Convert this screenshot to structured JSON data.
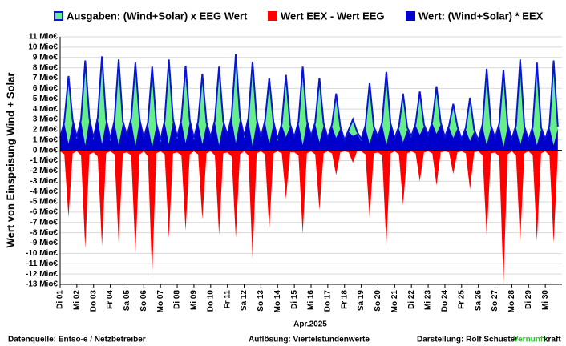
{
  "chart_data": {
    "type": "area",
    "y_axis_label": "Wert von Einspeisung Wind + Solar",
    "x_axis_label": "Apr.2025",
    "categories": [
      "Di 01",
      null,
      null,
      null,
      "Mi 02",
      null,
      null,
      null,
      "Do 03",
      null,
      null,
      null,
      "Fr 04",
      null,
      null,
      null,
      "Sa 05",
      null,
      null,
      null,
      "So 06",
      null,
      null,
      null,
      "Mo 07",
      null,
      null,
      null,
      "Di 08",
      null,
      null,
      null,
      "Mi 09",
      null,
      null,
      null,
      "Do 10",
      null,
      null,
      null,
      "Fr 11",
      null,
      null,
      null,
      "Sa 12",
      null,
      null,
      null,
      "So 13",
      null,
      null,
      null,
      "Mo 14",
      null,
      null,
      null,
      "Di 15",
      null,
      null,
      null,
      "Mi 16",
      null,
      null,
      null,
      "Do 17",
      null,
      null,
      null,
      "Fr 18",
      null,
      null,
      null,
      "Sa 19",
      null,
      null,
      null,
      "So 20",
      null,
      null,
      null,
      "Mo 21",
      null,
      null,
      null,
      "Di 22",
      null,
      null,
      null,
      "Mi 23",
      null,
      null,
      null,
      "Do 24",
      null,
      null,
      null,
      "Fr 25",
      null,
      null,
      null,
      "Sa 26",
      null,
      null,
      null,
      "So 27",
      null,
      null,
      null,
      "Mo 28",
      null,
      null,
      null,
      "Di 29",
      null,
      null,
      null,
      "Mi 30",
      null,
      null,
      null
    ],
    "series": [
      {
        "name": "Ausgaben: (Wind+Solar) x EEG Wert",
        "color": "#66ee88",
        "outline": "#0a14d8",
        "values": [
          1.2,
          2.8,
          7.2,
          2.9,
          1.3,
          3.0,
          8.7,
          3.1,
          1.2,
          3.2,
          9.1,
          3.0,
          1.1,
          2.9,
          8.8,
          2.8,
          1.4,
          3.1,
          8.5,
          3.0,
          1.2,
          2.7,
          8.1,
          2.6,
          1.0,
          2.9,
          8.8,
          3.0,
          1.3,
          3.0,
          8.2,
          2.9,
          1.2,
          2.8,
          7.4,
          2.7,
          1.3,
          2.9,
          8.1,
          2.8,
          1.5,
          3.3,
          9.3,
          3.2,
          1.4,
          3.1,
          8.6,
          3.0,
          1.2,
          2.9,
          7.0,
          2.8,
          1.1,
          2.6,
          7.3,
          2.5,
          1.3,
          2.8,
          8.1,
          2.9,
          1.4,
          2.7,
          7.0,
          2.6,
          1.2,
          2.5,
          5.5,
          2.3,
          1.0,
          2.0,
          3.0,
          1.8,
          1.1,
          2.4,
          6.5,
          2.3,
          1.3,
          2.7,
          7.6,
          2.6,
          1.2,
          2.3,
          5.5,
          2.2,
          1.4,
          2.6,
          5.7,
          2.5,
          1.5,
          2.8,
          6.2,
          2.7,
          1.3,
          2.4,
          4.5,
          2.3,
          1.1,
          2.2,
          5.1,
          2.0,
          1.0,
          2.5,
          7.9,
          2.4,
          1.2,
          2.6,
          7.8,
          2.5,
          1.1,
          2.4,
          8.8,
          2.3,
          1.0,
          2.3,
          8.5,
          2.2,
          1.1,
          2.4,
          8.7,
          2.3
        ]
      },
      {
        "name": "Wert EEX - Wert EEG",
        "color": "#ff0000",
        "values": [
          -0.1,
          -0.4,
          -6.5,
          -0.3,
          -0.1,
          -0.5,
          -9.5,
          -0.4,
          -0.2,
          -0.6,
          -9.3,
          -0.3,
          -0.1,
          -0.4,
          -9.0,
          -0.3,
          -0.2,
          -0.5,
          -10.0,
          -0.4,
          -0.1,
          -0.6,
          -12.3,
          -0.3,
          -0.1,
          -0.4,
          -8.5,
          -0.3,
          -0.2,
          -0.5,
          -7.8,
          -0.4,
          -0.1,
          -0.4,
          -6.7,
          -0.3,
          -0.1,
          -0.5,
          -8.2,
          -0.3,
          -0.2,
          -0.6,
          -8.5,
          -0.4,
          -0.1,
          -0.5,
          -10.5,
          -0.3,
          -0.1,
          -0.4,
          -7.8,
          -0.3,
          -0.1,
          -0.3,
          -4.7,
          -0.2,
          -0.2,
          -0.5,
          -8.1,
          -0.3,
          -0.1,
          -0.4,
          -5.8,
          -0.3,
          -0.1,
          -0.3,
          -2.4,
          -0.2,
          -0.1,
          -0.2,
          -1.2,
          -0.1,
          -0.1,
          -0.4,
          -6.6,
          -0.3,
          -0.2,
          -0.5,
          -9.2,
          -0.3,
          -0.1,
          -0.4,
          -5.3,
          -0.3,
          -0.1,
          -0.3,
          -3.0,
          -0.2,
          -0.1,
          -0.3,
          -3.4,
          -0.2,
          -0.1,
          -0.2,
          -2.3,
          -0.2,
          -0.1,
          -0.3,
          -3.8,
          -0.2,
          -0.1,
          -0.5,
          -8.4,
          -0.3,
          -0.2,
          -0.6,
          -13.0,
          -0.4,
          -0.1,
          -0.5,
          -8.9,
          -0.3,
          -0.1,
          -0.5,
          -8.8,
          -0.3,
          -0.1,
          -0.5,
          -9.0,
          -0.3
        ]
      },
      {
        "name": "Wert: (Wind+Solar) * EEX",
        "color": "#0000cc",
        "values": [
          1.0,
          2.6,
          0.6,
          2.7,
          1.1,
          2.8,
          0.5,
          2.9,
          1.0,
          3.0,
          0.6,
          2.8,
          0.9,
          2.7,
          0.5,
          2.6,
          1.2,
          2.9,
          0.4,
          2.8,
          1.0,
          2.5,
          0.3,
          2.4,
          0.8,
          2.7,
          0.6,
          2.8,
          1.1,
          2.8,
          0.7,
          2.7,
          1.0,
          2.6,
          0.6,
          2.5,
          1.1,
          2.7,
          0.5,
          2.6,
          1.3,
          3.1,
          0.7,
          3.0,
          1.2,
          2.9,
          0.4,
          2.8,
          1.0,
          2.7,
          0.6,
          2.6,
          0.9,
          2.4,
          1.3,
          2.3,
          1.1,
          2.6,
          0.5,
          2.7,
          1.2,
          2.5,
          0.8,
          2.4,
          1.0,
          2.3,
          1.2,
          2.1,
          0.8,
          1.8,
          1.4,
          1.6,
          0.9,
          2.2,
          0.6,
          2.1,
          1.1,
          2.5,
          0.5,
          2.4,
          1.0,
          2.1,
          0.8,
          2.0,
          1.2,
          2.4,
          1.5,
          2.3,
          1.3,
          2.6,
          1.6,
          2.5,
          1.1,
          2.2,
          1.2,
          2.1,
          0.9,
          2.0,
          0.9,
          1.8,
          0.8,
          2.3,
          0.5,
          2.2,
          1.0,
          2.4,
          0.3,
          2.3,
          0.9,
          2.2,
          0.5,
          2.1,
          0.8,
          2.1,
          0.5,
          2.0,
          0.9,
          2.2,
          0.5,
          2.1
        ]
      }
    ],
    "ylim": [
      -13,
      11
    ],
    "yticks": [
      {
        "value": 11,
        "label": "11 Mio€"
      },
      {
        "value": 10,
        "label": "10 Mio€"
      },
      {
        "value": 9,
        "label": "9 Mio€"
      },
      {
        "value": 8,
        "label": "8 Mio€"
      },
      {
        "value": 7,
        "label": "7 Mio€"
      },
      {
        "value": 6,
        "label": "6 Mio€"
      },
      {
        "value": 5,
        "label": "5 Mio€"
      },
      {
        "value": 4,
        "label": "4 Mio€"
      },
      {
        "value": 3,
        "label": "3 Mio€"
      },
      {
        "value": 2,
        "label": "2 Mio€"
      },
      {
        "value": 1,
        "label": "1 Mio€"
      },
      {
        "value": 0,
        "label": "0 Mio€"
      },
      {
        "value": -1,
        "label": "-1 Mio€"
      },
      {
        "value": -2,
        "label": "-2 Mio€"
      },
      {
        "value": -3,
        "label": "-3 Mio€"
      },
      {
        "value": -4,
        "label": "-4 Mio€"
      },
      {
        "value": -5,
        "label": "-5 Mio€"
      },
      {
        "value": -6,
        "label": "-6 Mio€"
      },
      {
        "value": -7,
        "label": "-7 Mio€"
      },
      {
        "value": -8,
        "label": "-8 Mio€"
      },
      {
        "value": -9,
        "label": "-9 Mio€"
      },
      {
        "value": -10,
        "label": "-10 Mio€"
      },
      {
        "value": -11,
        "label": "-11 Mio€"
      },
      {
        "value": -12,
        "label": "-12 Mio€"
      },
      {
        "value": -13,
        "label": "-13 Mio€"
      }
    ],
    "grid": true,
    "legend": "top",
    "footer": {
      "source": "Datenquelle: Entso-e  / Netzbetreiber",
      "resolution": "Auflösung: Viertelstundenwerte",
      "author": "Darstellung:  Rolf Schuster",
      "brand_green": "Vernunft",
      "brand_black": "kraft"
    }
  }
}
